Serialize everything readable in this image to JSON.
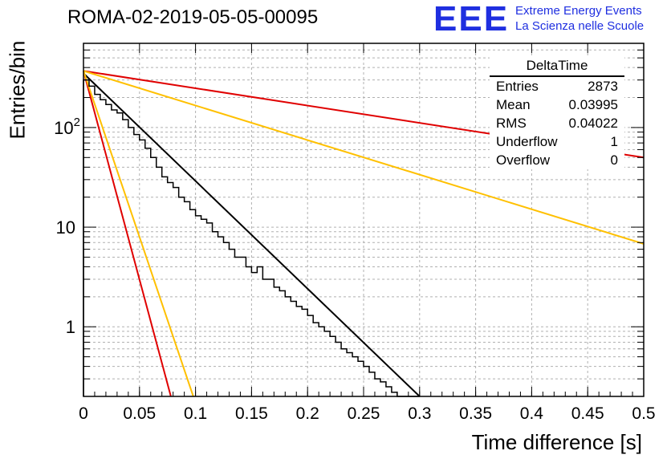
{
  "header": {
    "run_title": "ROMA-02-2019-05-05-00095",
    "brand_logo": "EEE",
    "brand_line1": "Extreme Energy Events",
    "brand_line2": "La Scienza nelle Scuole",
    "brand_color": "#1f2fe0"
  },
  "stats_box": {
    "title": "DeltaTime",
    "rows": [
      {
        "label": "Entries",
        "value": "2873"
      },
      {
        "label": "Mean",
        "value": "0.03995"
      },
      {
        "label": "RMS",
        "value": "0.04022"
      },
      {
        "label": "Underflow",
        "value": "1"
      },
      {
        "label": "Overflow",
        "value": "0"
      }
    ]
  },
  "chart_data": {
    "type": "line",
    "xlabel": "Time difference [s]",
    "ylabel": "Entries/bin",
    "xlim": [
      0,
      0.5
    ],
    "ylim": [
      0.2,
      700
    ],
    "yscale": "log",
    "grid": true,
    "x_ticks": [
      "0",
      "0.05",
      "0.1",
      "0.15",
      "0.2",
      "0.25",
      "0.3",
      "0.35",
      "0.4",
      "0.45",
      "0.5"
    ],
    "y_ticks": [
      {
        "value": 1,
        "label": "1"
      },
      {
        "value": 10,
        "label": "10"
      },
      {
        "value": 100,
        "label": "10^2"
      }
    ],
    "histogram": {
      "bin_width": 0.005,
      "x_start": 0,
      "color": "#000000",
      "counts": [
        300,
        260,
        215,
        190,
        170,
        150,
        140,
        120,
        100,
        85,
        75,
        62,
        50,
        40,
        32,
        28,
        25,
        20,
        18,
        15,
        13,
        12,
        11,
        9,
        8,
        7,
        6,
        5,
        5,
        4,
        3.5,
        4,
        3,
        3,
        2.5,
        2.3,
        2,
        1.8,
        1.6,
        1.5,
        1.3,
        1.1,
        1,
        0.9,
        0.8,
        0.7,
        0.6,
        0.55,
        0.5,
        0.45,
        0.4,
        0.35,
        0.3,
        0.28,
        0.25,
        0.22,
        0.2,
        0.2,
        0.2,
        0.2
      ]
    },
    "series": [
      {
        "color": "#000000",
        "points": [
          [
            0,
            350
          ],
          [
            0.3,
            0.2
          ]
        ]
      },
      {
        "color": "#e00000",
        "points": [
          [
            0,
            370
          ],
          [
            0.5,
            50
          ]
        ]
      },
      {
        "color": "#ffc000",
        "points": [
          [
            0,
            370
          ],
          [
            0.5,
            6.8
          ]
        ]
      },
      {
        "color": "#e00000",
        "points": [
          [
            0,
            370
          ],
          [
            0.078,
            0.2
          ]
        ]
      },
      {
        "color": "#ffc000",
        "points": [
          [
            0,
            370
          ],
          [
            0.098,
            0.2
          ]
        ]
      }
    ]
  }
}
